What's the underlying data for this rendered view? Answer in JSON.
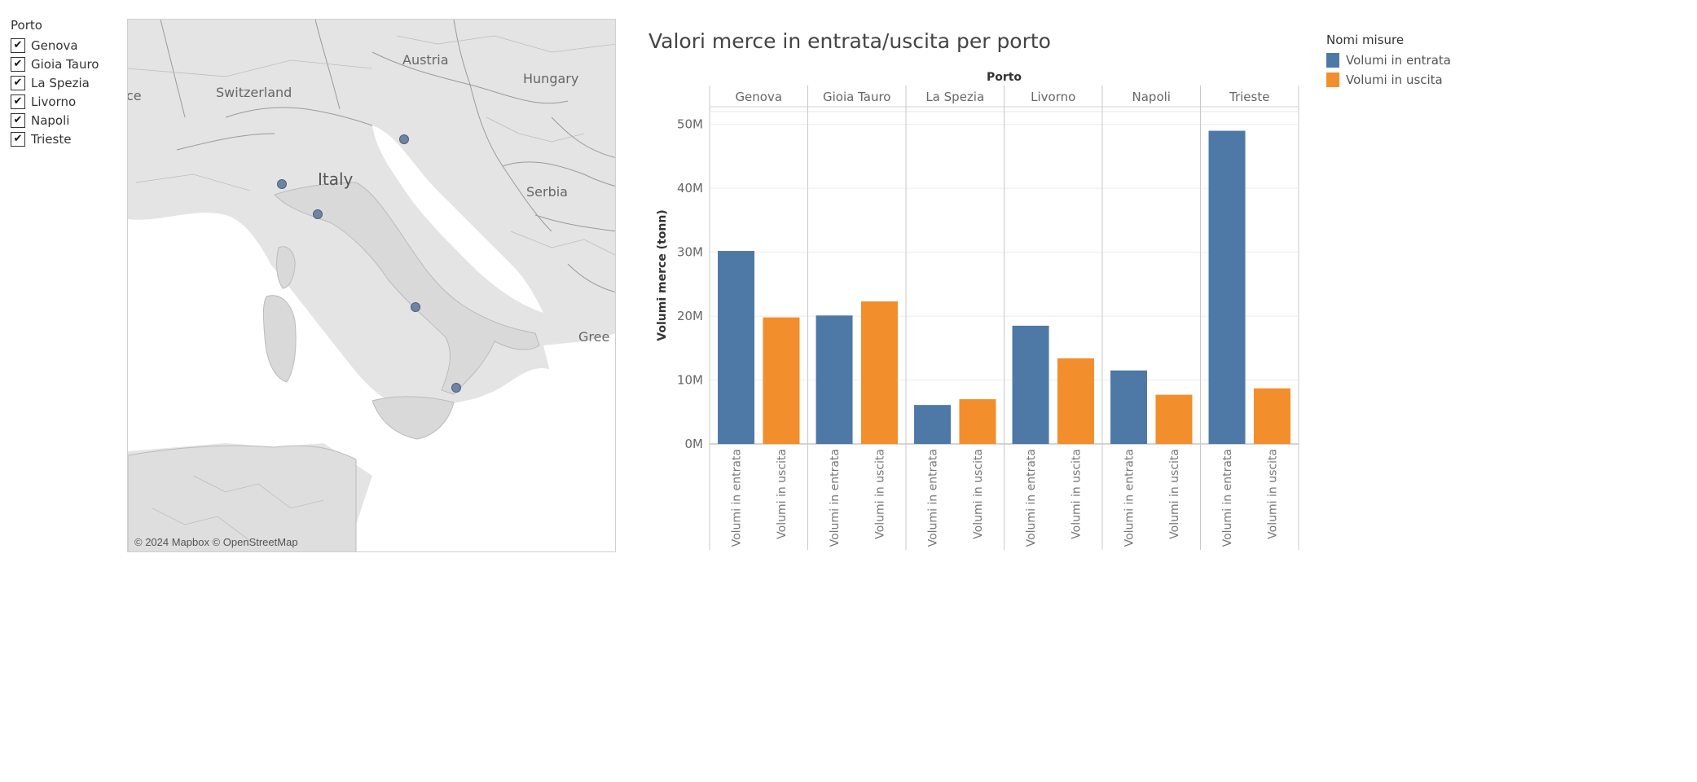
{
  "filter": {
    "title": "Porto",
    "items": [
      {
        "label": "Genova",
        "checked": true
      },
      {
        "label": "Gioia Tauro",
        "checked": true
      },
      {
        "label": "La Spezia",
        "checked": true
      },
      {
        "label": "Livorno",
        "checked": true
      },
      {
        "label": "Napoli",
        "checked": true
      },
      {
        "label": "Trieste",
        "checked": true
      }
    ]
  },
  "map": {
    "labels": {
      "austria": "Austria",
      "hungary": "Hungary",
      "switzerland": "Switzerland",
      "italy": "Italy",
      "serbia": "Serbia",
      "france_partial": "ce",
      "greece_partial": "Gree"
    },
    "attribution": "© 2024 Mapbox © OpenStreetMap",
    "marker_color": "#6e84a3"
  },
  "legend": {
    "title": "Nomi misure",
    "items": [
      {
        "label": "Volumi in entrata",
        "color": "#4e79a7"
      },
      {
        "label": "Volumi in uscita",
        "color": "#f28e2b"
      }
    ]
  },
  "chart_data": {
    "type": "bar",
    "title": "Valori merce in entrata/uscita per porto",
    "column_header": "Porto",
    "ylabel": "Volumi merce (tonn)",
    "ylim": [
      0,
      52000000
    ],
    "yticks": [
      {
        "value": 0,
        "label": "0M"
      },
      {
        "value": 10000000,
        "label": "10M"
      },
      {
        "value": 20000000,
        "label": "20M"
      },
      {
        "value": 30000000,
        "label": "30M"
      },
      {
        "value": 40000000,
        "label": "40M"
      },
      {
        "value": 50000000,
        "label": "50M"
      }
    ],
    "categories": [
      "Genova",
      "Gioia Tauro",
      "La Spezia",
      "Livorno",
      "Napoli",
      "Trieste"
    ],
    "measure_labels": [
      "Volumi in entrata",
      "Volumi in uscita"
    ],
    "series": [
      {
        "name": "Volumi in entrata",
        "color": "#4e79a7",
        "values": [
          30200000,
          20100000,
          6100000,
          18500000,
          11500000,
          49000000
        ]
      },
      {
        "name": "Volumi in uscita",
        "color": "#f28e2b",
        "values": [
          19800000,
          22300000,
          7000000,
          13400000,
          7700000,
          8700000
        ]
      }
    ],
    "grid": true,
    "legend_position": "right"
  }
}
